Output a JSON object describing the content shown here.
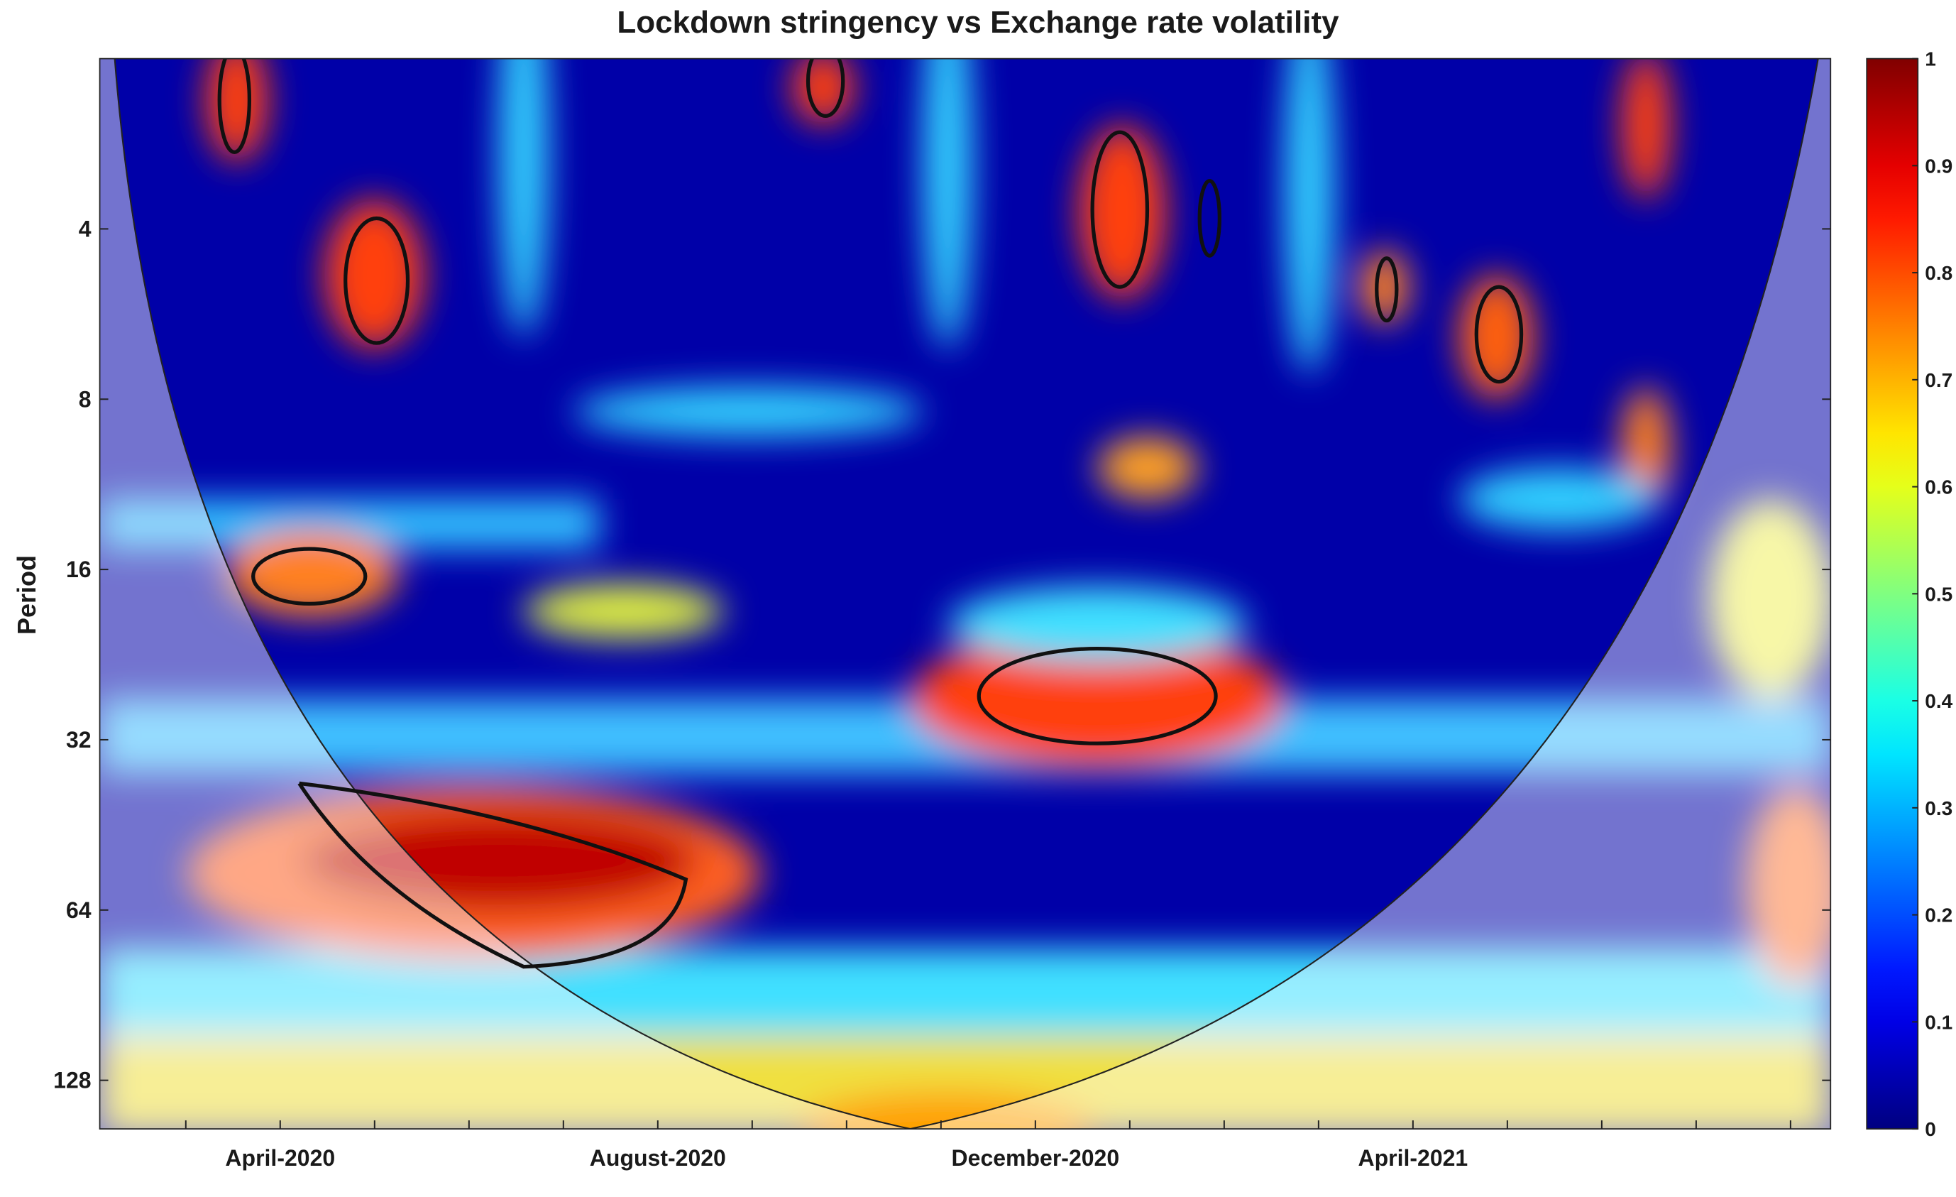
{
  "chart_data": {
    "type": "heatmap",
    "title": "Lockdown stringency vs Exchange rate volatility",
    "y_label": "Period",
    "categories": [
      null,
      "April-2020",
      null,
      null,
      null,
      "August-2020",
      null,
      null,
      null,
      "December-2020",
      null,
      null,
      null,
      "April-2021",
      null,
      null,
      null,
      null
    ],
    "ylim": [
      2,
      156
    ],
    "yticks": [
      4,
      8,
      16,
      32,
      64,
      128
    ],
    "y_log_scale": true,
    "y_inverted": true,
    "colorbar_lim": [
      0,
      1
    ],
    "colorbar_ticks": [
      0,
      0.1,
      0.2,
      0.3,
      0.4,
      0.5,
      0.6,
      0.7,
      0.8,
      0.9,
      1
    ],
    "colormap": "jet"
  }
}
